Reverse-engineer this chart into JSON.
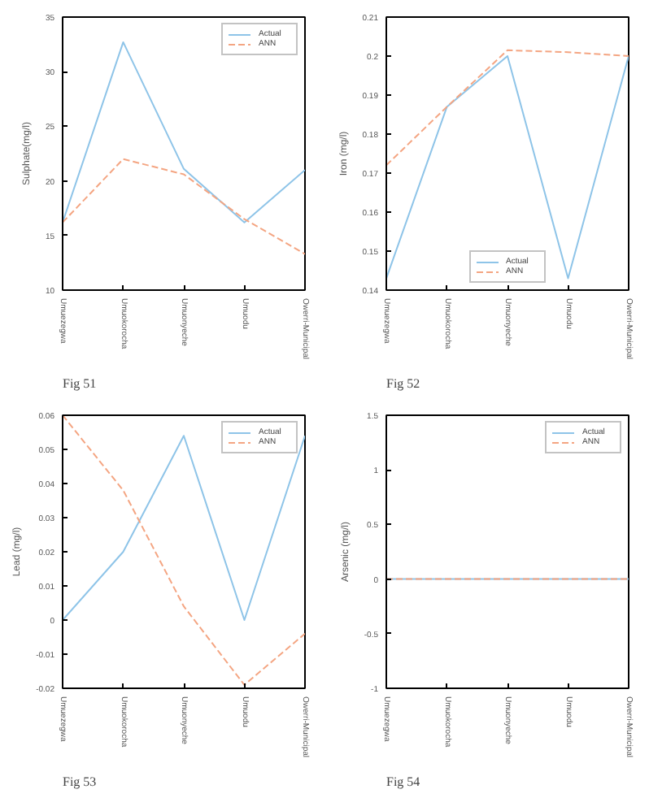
{
  "chart_data": [
    {
      "type": "line",
      "categories": [
        "Umuezegwa",
        "Umuokorocha",
        "Umuonyeche",
        "Umuodu",
        "Owerri-Municipal"
      ],
      "ylabel": "Sulphate(mg/l)",
      "ylim": [
        10,
        35
      ],
      "yticks": [
        10,
        15,
        20,
        25,
        30,
        35
      ],
      "legend": "top right",
      "annotations": [
        "Fig 51"
      ],
      "series": [
        {
          "name": "Actual",
          "color": "#8ec4e8",
          "line_style": "solid",
          "values": [
            16.2,
            32.7,
            21.1,
            16.2,
            21.0
          ]
        },
        {
          "name": "ANN",
          "color": "#f4a582",
          "line_style": "dashed",
          "values": [
            16.2,
            22.0,
            20.6,
            16.5,
            13.3
          ]
        }
      ]
    },
    {
      "type": "line",
      "categories": [
        "Umuezegwa",
        "Umuokorocha",
        "Umuonyeche",
        "Umuodu",
        "Owerri-Municipal"
      ],
      "ylabel": "Iron (mg/l)",
      "ylim": [
        0.14,
        0.21
      ],
      "yticks": [
        0.14,
        0.15,
        0.16,
        0.17,
        0.18,
        0.19,
        0.2,
        0.21
      ],
      "legend": "bottom",
      "annotations": [
        "Fig 52"
      ],
      "series": [
        {
          "name": "Actual",
          "color": "#8ec4e8",
          "line_style": "solid",
          "values": [
            0.143,
            0.187,
            0.2,
            0.143,
            0.2
          ]
        },
        {
          "name": "ANN",
          "color": "#f4a582",
          "line_style": "dashed",
          "values": [
            0.172,
            0.187,
            0.2015,
            0.201,
            0.2
          ]
        }
      ]
    },
    {
      "type": "line",
      "categories": [
        "Umuezegwa",
        "Umuokorocha",
        "Umuonyeche",
        "Umuodu",
        "Owerri-Municipal"
      ],
      "ylabel": "Lead (mg/l)",
      "ylim": [
        -0.02,
        0.06
      ],
      "yticks": [
        -0.02,
        -0.01,
        0,
        0.01,
        0.02,
        0.03,
        0.04,
        0.05,
        0.06
      ],
      "legend": "top right",
      "annotations": [
        "Fig 53"
      ],
      "series": [
        {
          "name": "Actual",
          "color": "#8ec4e8",
          "line_style": "solid",
          "values": [
            0,
            0.02,
            0.054,
            0,
            0.054
          ]
        },
        {
          "name": "ANN",
          "color": "#f4a582",
          "line_style": "dashed",
          "values": [
            0.06,
            0.038,
            0.004,
            -0.019,
            -0.004
          ]
        }
      ]
    },
    {
      "type": "line",
      "categories": [
        "Umuezegwa",
        "Umuokorocha",
        "Umuonyeche",
        "Umuodu",
        "Owerri-Municipal"
      ],
      "ylabel": "Arsenic (mg/l)",
      "ylim": [
        -1,
        1.5
      ],
      "yticks": [
        -1,
        -0.5,
        0,
        0.5,
        1,
        1.5
      ],
      "legend": "top right",
      "annotations": [
        "Fig 54"
      ],
      "series": [
        {
          "name": "Actual",
          "color": "#8ec4e8",
          "line_style": "solid",
          "values": [
            0,
            0,
            0,
            0,
            0
          ]
        },
        {
          "name": "ANN",
          "color": "#f4a582",
          "line_style": "dashed",
          "values": [
            0,
            0,
            0,
            0,
            0
          ]
        }
      ]
    }
  ]
}
